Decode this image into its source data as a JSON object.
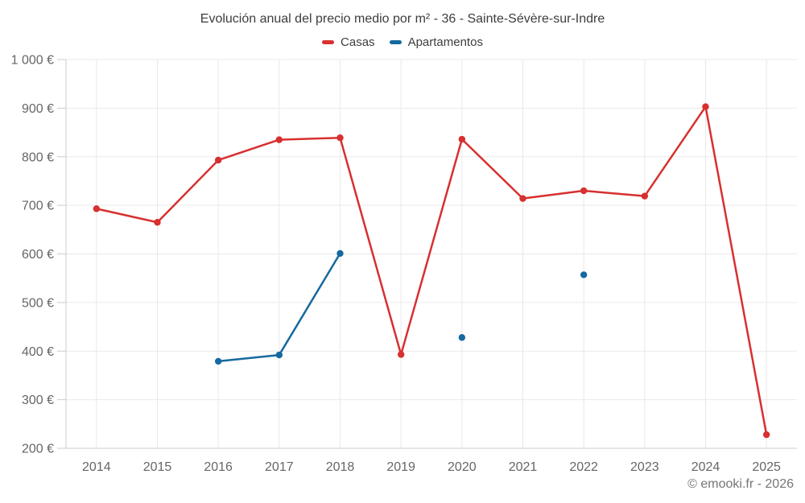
{
  "title": "Evolución anual del precio medio por m² - 36 - Sainte-Sévère-sur-Indre",
  "legend": [
    {
      "label": "Casas",
      "color": "#d7302f"
    },
    {
      "label": "Apartamentos",
      "color": "#16699f"
    }
  ],
  "footer": {
    "credit": "© emooki.fr - 2026"
  },
  "colors": {
    "casas": "#d7302f",
    "apartamentos": "#16699f",
    "axis_line": "#cccccc",
    "gridline": "#e9e9e9",
    "tick_label": "#666666",
    "title_text": "#3d3d3d",
    "credit_text": "#757575"
  },
  "chart_data": {
    "type": "line",
    "title": "Evolución anual del precio medio por m² - 36 - Sainte-Sévère-sur-Indre",
    "xlabel": "",
    "ylabel": "",
    "grid": true,
    "legend_position": "top",
    "ylim": [
      200,
      1000
    ],
    "categories": [
      "2014",
      "2015",
      "2016",
      "2017",
      "2018",
      "2019",
      "2020",
      "2021",
      "2022",
      "2023",
      "2024",
      "2025"
    ],
    "y_ticks": [
      {
        "value": 200,
        "label": "200 €"
      },
      {
        "value": 300,
        "label": "300 €"
      },
      {
        "value": 400,
        "label": "400 €"
      },
      {
        "value": 500,
        "label": "500 €"
      },
      {
        "value": 600,
        "label": "600 €"
      },
      {
        "value": 700,
        "label": "700 €"
      },
      {
        "value": 800,
        "label": "800 €"
      },
      {
        "value": 900,
        "label": "900 €"
      },
      {
        "value": 1000,
        "label": "1 000 €"
      }
    ],
    "series": [
      {
        "name": "Casas",
        "color": "#d7302f",
        "values": [
          693,
          665,
          793,
          835,
          839,
          393,
          836,
          714,
          730,
          719,
          903,
          228
        ]
      },
      {
        "name": "Apartamentos",
        "color": "#16699f",
        "values": [
          null,
          null,
          379,
          392,
          601,
          null,
          428,
          null,
          557,
          null,
          null,
          null
        ]
      }
    ]
  }
}
